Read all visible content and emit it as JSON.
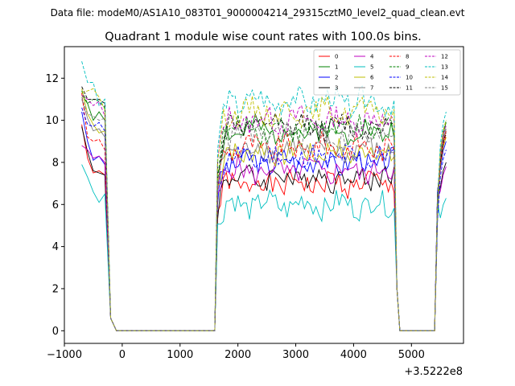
{
  "chart_data": {
    "type": "line",
    "suptitle": "Data file: modeM0/AS1A10_083T01_9000004214_29315cztM0_level2_quad_clean.evt",
    "title": "Quadrant 1 module wise count rates with 100.0s bins.",
    "xlabel": "",
    "ylabel": "",
    "x_offset_label": "+3.5222e8",
    "xlim": [
      -1000,
      5900
    ],
    "ylim": [
      -0.6,
      13.5
    ],
    "xticks": [
      -1000,
      0,
      1000,
      2000,
      3000,
      4000,
      5000
    ],
    "xtick_labels": [
      "−1000",
      "0",
      "1000",
      "2000",
      "3000",
      "4000",
      "5000"
    ],
    "yticks": [
      0,
      2,
      4,
      6,
      8,
      10,
      12
    ],
    "ytick_labels": [
      "0",
      "2",
      "4",
      "6",
      "8",
      "10",
      "12"
    ],
    "grid": false,
    "legend_placement": "top-right",
    "legend_columns": 4,
    "x_segments": [
      {
        "start": -700,
        "step": 100,
        "count": 9
      },
      {
        "start": 1600,
        "step": 50,
        "count": 65
      },
      {
        "start": 5400,
        "step": 50,
        "count": 5
      }
    ],
    "gap_zero_ranges": [
      [
        -100,
        1600
      ],
      [
        5000,
        5400
      ]
    ],
    "series": [
      {
        "name": "0",
        "color": "#ff0000",
        "dash": "solid",
        "pre": [
          9.8,
          8.2,
          7.5,
          7.6,
          7.4
        ],
        "mid": 7.0,
        "seed": 1,
        "post_end": 9.5
      },
      {
        "name": "1",
        "color": "#008000",
        "dash": "solid",
        "pre": [
          11.2,
          10.8,
          10.0,
          10.4,
          10.0
        ],
        "mid": 9.5,
        "seed": 2,
        "post_end": 9.9
      },
      {
        "name": "2",
        "color": "#0000ff",
        "dash": "solid",
        "pre": [
          10.4,
          9.0,
          8.1,
          8.3,
          7.9
        ],
        "mid": 8.0,
        "seed": 3,
        "post_end": 9.0
      },
      {
        "name": "3",
        "color": "#000000",
        "dash": "solid",
        "pre": [
          9.7,
          8.5,
          7.6,
          7.5,
          7.4
        ],
        "mid": 7.3,
        "seed": 4,
        "post_end": 8.0
      },
      {
        "name": "4",
        "color": "#bf00bf",
        "dash": "solid",
        "pre": [
          8.8,
          8.6,
          8.2,
          8.3,
          8.0
        ],
        "mid": 7.6,
        "seed": 5,
        "post_end": 7.8
      },
      {
        "name": "5",
        "color": "#00bfbf",
        "dash": "solid",
        "pre": [
          7.9,
          7.3,
          6.6,
          6.1,
          6.5
        ],
        "mid": 6.0,
        "seed": 6,
        "post_end": 6.3
      },
      {
        "name": "6",
        "color": "#bfbf00",
        "dash": "solid",
        "pre": [
          11.5,
          10.3,
          9.8,
          9.4,
          9.5
        ],
        "mid": 8.5,
        "seed": 7,
        "post_end": 9.2
      },
      {
        "name": "7",
        "color": "#808080",
        "dash": "solid",
        "pre": [
          11.0,
          10.1,
          9.5,
          9.6,
          9.2
        ],
        "mid": 8.6,
        "seed": 8,
        "post_end": 9.6
      },
      {
        "name": "8",
        "color": "#ff0000",
        "dash": "dashed",
        "pre": [
          11.3,
          9.2,
          9.0,
          9.1,
          8.6
        ],
        "mid": 8.7,
        "seed": 9,
        "post_end": 9.3
      },
      {
        "name": "9",
        "color": "#008000",
        "dash": "dashed",
        "pre": [
          11.4,
          10.8,
          11.0,
          10.9,
          10.6
        ],
        "mid": 9.6,
        "seed": 10,
        "post_end": 10.0
      },
      {
        "name": "10",
        "color": "#0000ff",
        "dash": "dashed",
        "pre": [
          10.6,
          9.8,
          9.7,
          9.9,
          9.5
        ],
        "mid": 8.2,
        "seed": 11,
        "post_end": 8.6
      },
      {
        "name": "11",
        "color": "#000000",
        "dash": "dashed",
        "pre": [
          11.6,
          11.0,
          11.0,
          11.0,
          10.8
        ],
        "mid": 9.7,
        "seed": 12,
        "post_end": 9.4
      },
      {
        "name": "12",
        "color": "#bf00bf",
        "dash": "dashed",
        "pre": [
          11.2,
          11.0,
          10.7,
          10.9,
          10.2
        ],
        "mid": 10.0,
        "seed": 13,
        "post_end": 9.8
      },
      {
        "name": "13",
        "color": "#00bfbf",
        "dash": "dashed",
        "pre": [
          12.8,
          11.8,
          11.8,
          10.7,
          11.0
        ],
        "mid": 10.9,
        "seed": 14,
        "post_end": 10.4
      },
      {
        "name": "14",
        "color": "#bfbf00",
        "dash": "dashed",
        "pre": [
          11.3,
          11.4,
          11.5,
          11.1,
          10.5
        ],
        "mid": 10.4,
        "seed": 15,
        "post_end": 10.0
      },
      {
        "name": "15",
        "color": "#808080",
        "dash": "dashed",
        "pre": [
          11.1,
          10.3,
          10.2,
          10.0,
          10.1
        ],
        "mid": 9.3,
        "seed": 16,
        "post_end": 9.7
      }
    ]
  }
}
